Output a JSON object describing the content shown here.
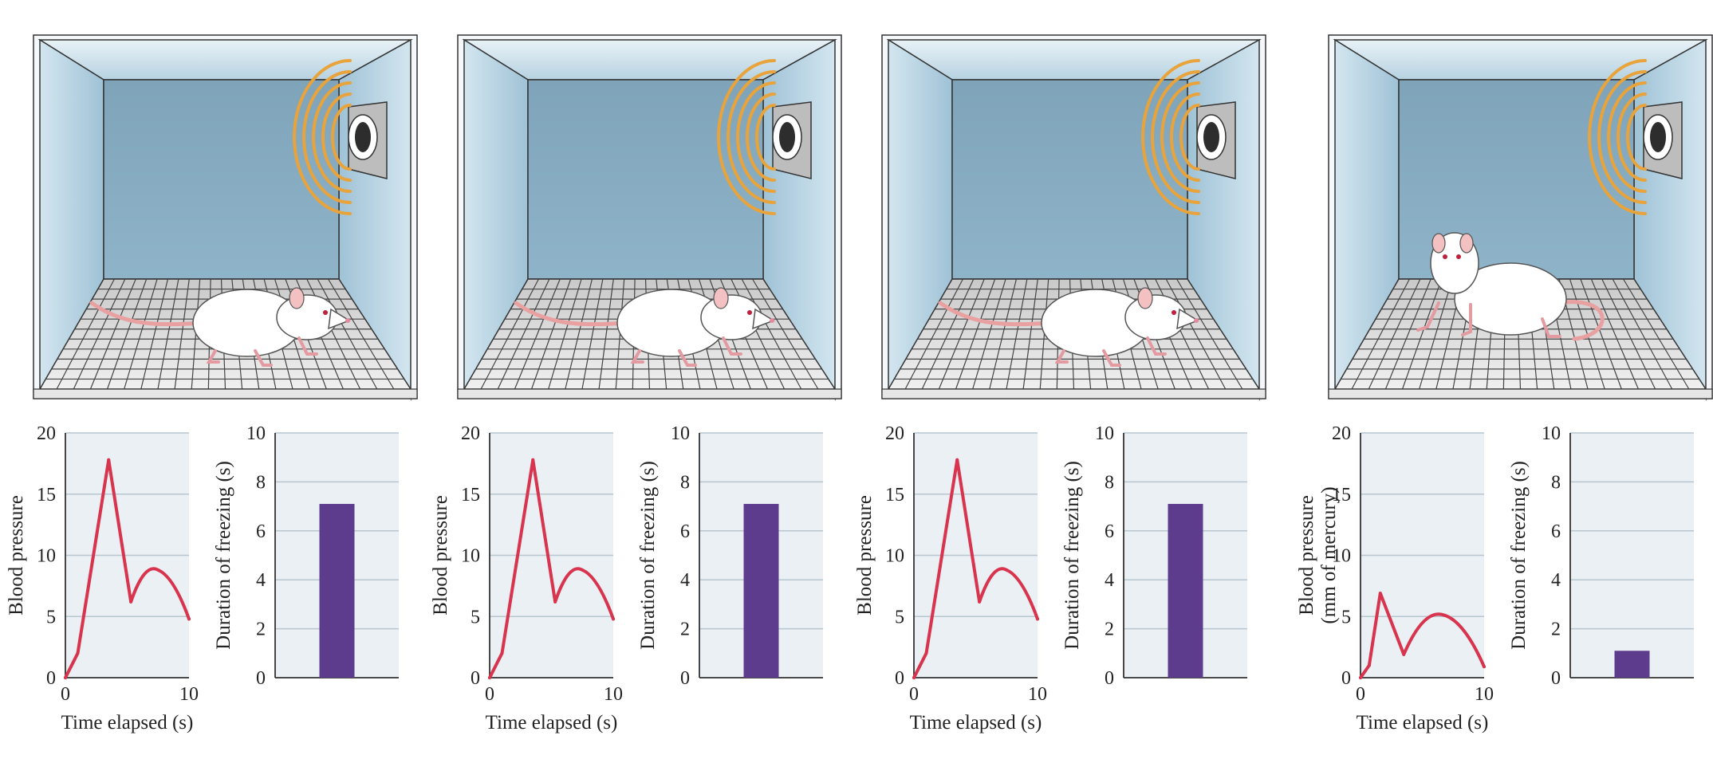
{
  "colors": {
    "chart_bg": "#eaf0f4",
    "gridline": "#b8c6d0",
    "axis": "#333333",
    "line": "#d8344e",
    "bar": "#5e3c8d",
    "box_back": "#82a9bf",
    "box_side": "#a9c9dc",
    "box_top": "#c5dce8",
    "floor": "#d9d9d9",
    "speaker_waves": "#e9a33b",
    "rat_body": "#ffffff",
    "rat_tail": "#e8a0a0"
  },
  "panels": [
    {
      "scene": {
        "rat_pose": "freezing",
        "speaker": "tone-on"
      },
      "line_chart": {
        "ylabel_lines": [
          "Blood pressure"
        ]
      }
    },
    {
      "scene": {
        "rat_pose": "freezing",
        "speaker": "tone-on"
      },
      "line_chart": {
        "ylabel_lines": [
          "Blood pressure"
        ]
      }
    },
    {
      "scene": {
        "rat_pose": "freezing",
        "speaker": "tone-on"
      },
      "line_chart": {
        "ylabel_lines": [
          "Blood pressure"
        ]
      }
    },
    {
      "scene": {
        "rat_pose": "alert-standing",
        "speaker": "tone-on"
      },
      "line_chart": {
        "ylabel_lines": [
          "Blood pressure",
          "(mm of mercury)"
        ]
      }
    }
  ],
  "chart_data": [
    {
      "type": "line",
      "xlabel": "Time elapsed (s)",
      "ylabel": "Blood pressure",
      "x": [
        0,
        1,
        3.5,
        5.3,
        7.5,
        10
      ],
      "y": [
        0,
        2,
        17.8,
        6.2,
        8.8,
        4.8
      ],
      "xlim": [
        0,
        10
      ],
      "ylim": [
        0,
        20
      ],
      "xticks": [
        0,
        10
      ],
      "yticks": [
        0,
        5,
        10,
        15,
        20
      ],
      "grid": true
    },
    {
      "type": "bar",
      "ylabel": "Duration of freezing (s)",
      "values": [
        7.1
      ],
      "ylim": [
        0,
        10
      ],
      "yticks": [
        0,
        2,
        4,
        6,
        8,
        10
      ],
      "grid": true
    },
    {
      "type": "line",
      "xlabel": "Time elapsed (s)",
      "ylabel": "Blood pressure",
      "x": [
        0,
        1,
        3.5,
        5.3,
        7.5,
        10
      ],
      "y": [
        0,
        2,
        17.8,
        6.2,
        8.8,
        4.8
      ],
      "xlim": [
        0,
        10
      ],
      "ylim": [
        0,
        20
      ],
      "xticks": [
        0,
        10
      ],
      "yticks": [
        0,
        5,
        10,
        15,
        20
      ],
      "grid": true
    },
    {
      "type": "bar",
      "ylabel": "Duration of freezing (s)",
      "values": [
        7.1
      ],
      "ylim": [
        0,
        10
      ],
      "yticks": [
        0,
        2,
        4,
        6,
        8,
        10
      ],
      "grid": true
    },
    {
      "type": "line",
      "xlabel": "Time elapsed (s)",
      "ylabel": "Blood pressure",
      "x": [
        0,
        1,
        3.5,
        5.3,
        7.5,
        10
      ],
      "y": [
        0,
        2,
        17.8,
        6.2,
        8.8,
        4.8
      ],
      "xlim": [
        0,
        10
      ],
      "ylim": [
        0,
        20
      ],
      "xticks": [
        0,
        10
      ],
      "yticks": [
        0,
        5,
        10,
        15,
        20
      ],
      "grid": true
    },
    {
      "type": "bar",
      "ylabel": "Duration of freezing (s)",
      "values": [
        7.1
      ],
      "ylim": [
        0,
        10
      ],
      "yticks": [
        0,
        2,
        4,
        6,
        8,
        10
      ],
      "grid": true
    },
    {
      "type": "line",
      "xlabel": "Time elapsed (s)",
      "ylabel": "Blood pressure (mm of mercury)",
      "x": [
        0,
        0.7,
        1.6,
        3.5,
        6.8,
        10
      ],
      "y": [
        0,
        1,
        6.9,
        1.9,
        5.1,
        0.9
      ],
      "xlim": [
        0,
        10
      ],
      "ylim": [
        0,
        20
      ],
      "xticks": [
        0,
        10
      ],
      "yticks": [
        0,
        5,
        10,
        15,
        20
      ],
      "grid": true
    },
    {
      "type": "bar",
      "ylabel": "Duration of freezing (s)",
      "values": [
        1.1
      ],
      "ylim": [
        0,
        10
      ],
      "yticks": [
        0,
        2,
        4,
        6,
        8,
        10
      ],
      "grid": true
    }
  ]
}
